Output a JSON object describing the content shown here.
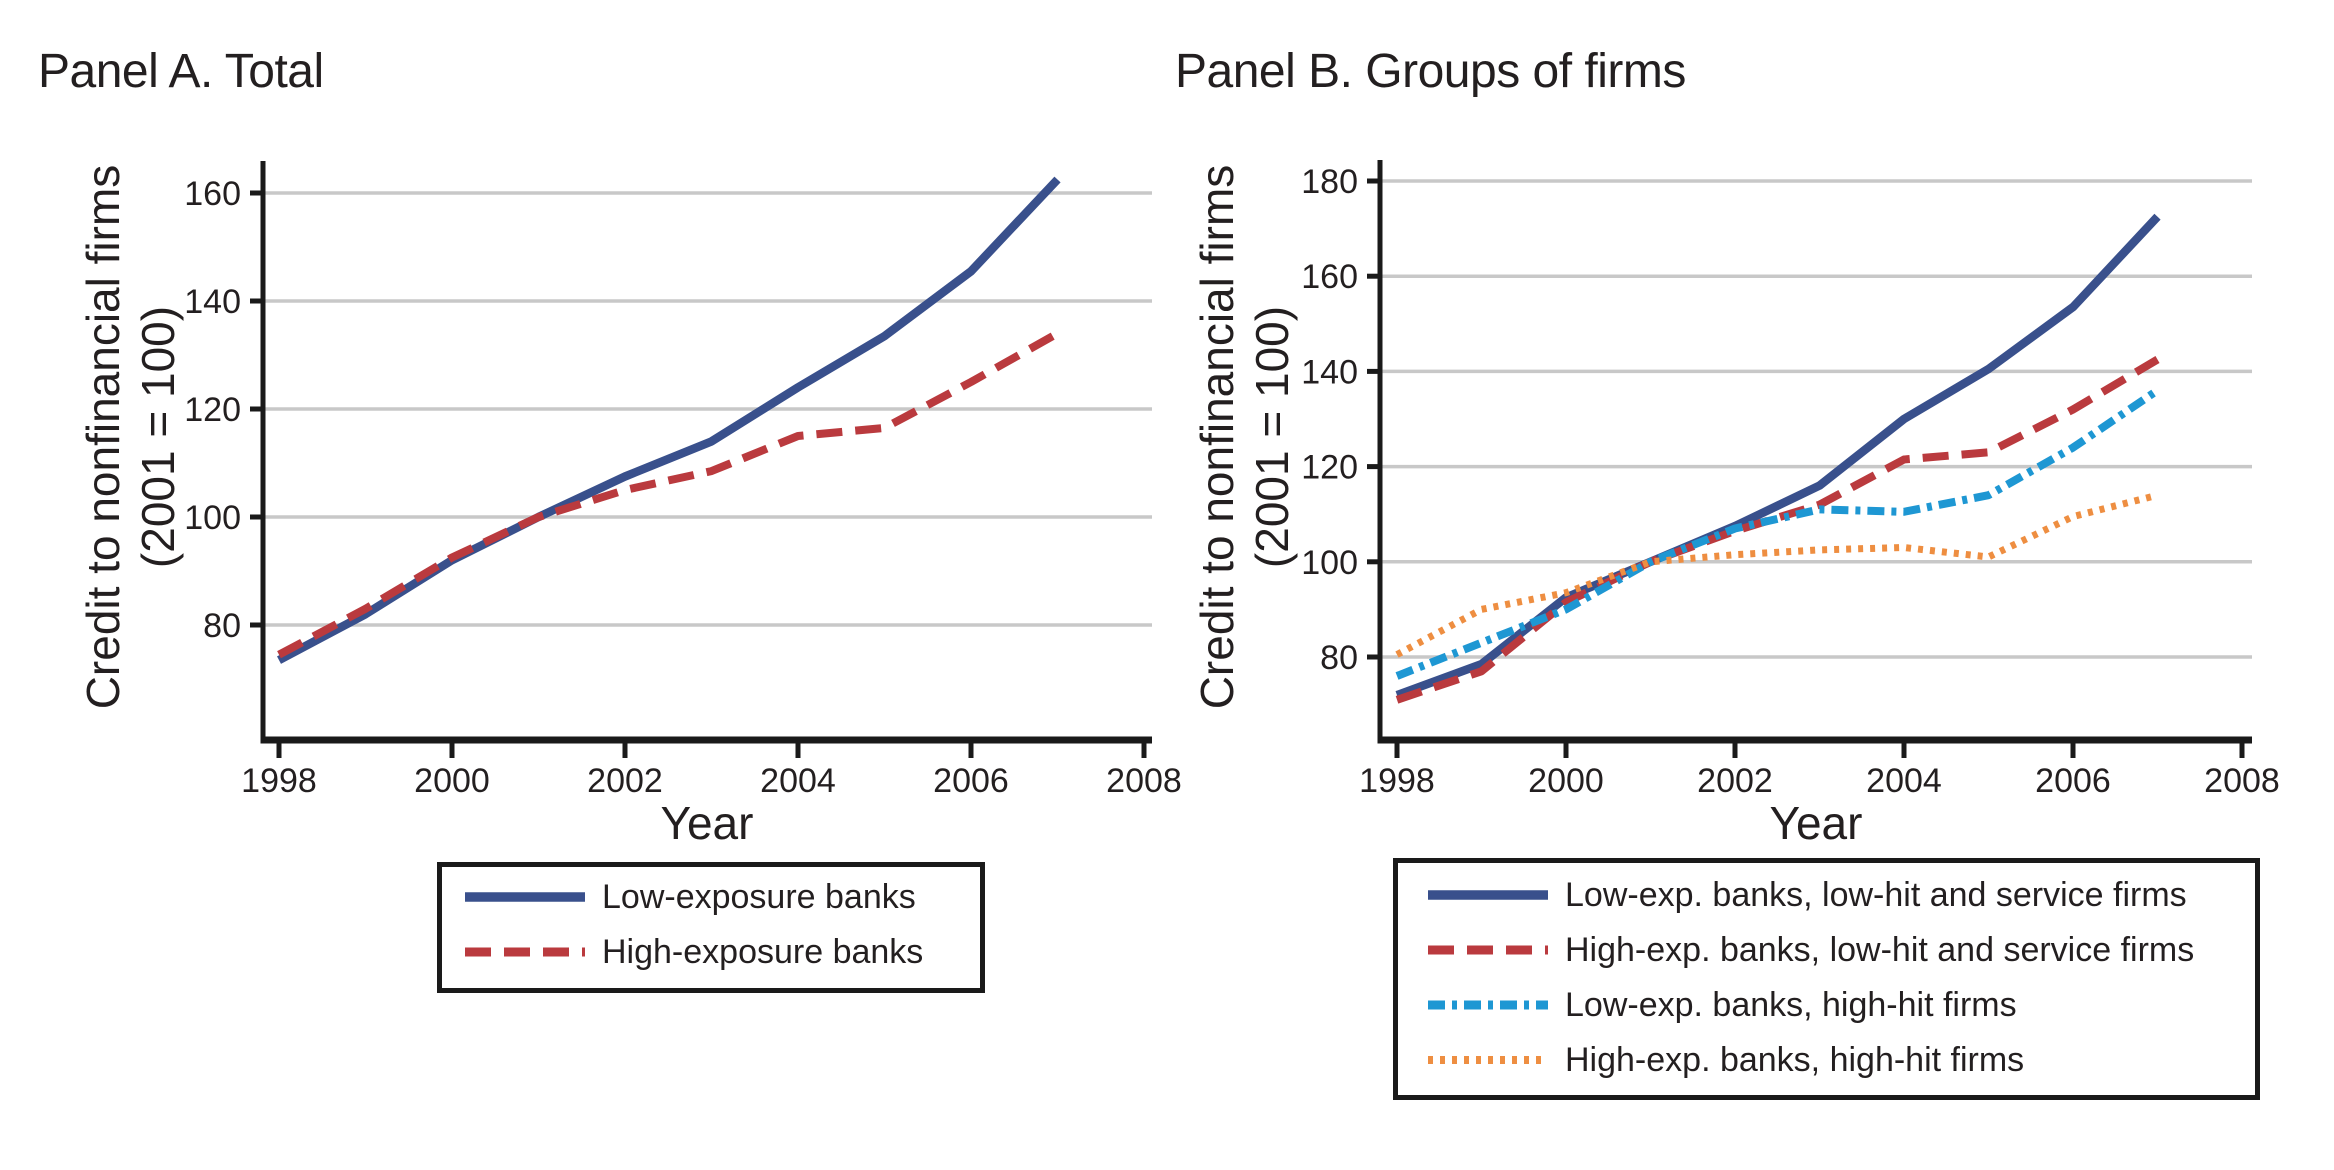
{
  "colors": {
    "background": "#ffffff",
    "grid": "#c8c8c8",
    "axis": "#1a1a1a",
    "text": "#231f20",
    "navy": "#39508c",
    "red": "#ba3a3e",
    "cyan": "#1e97d3",
    "orange": "#ee8e41"
  },
  "chart_data": [
    {
      "type": "line",
      "panel": "A",
      "title": "Panel A. Total",
      "xlabel": "Year",
      "ylabel": "Credit to nonfinancial firms (2001 = 100)",
      "ylabel_lines": [
        "Credit to nonfinancial firms",
        "(2001 = 100)"
      ],
      "x": [
        1998,
        1999,
        2000,
        2001,
        2002,
        2003,
        2004,
        2005,
        2006,
        2007
      ],
      "xticks": [
        1998,
        2000,
        2002,
        2004,
        2006,
        2008
      ],
      "yticks": [
        80,
        100,
        120,
        140,
        160
      ],
      "xlim": [
        1997.8,
        2008.1
      ],
      "ylim": [
        58.5,
        166
      ],
      "grid": "horizontal",
      "legend_position": "below",
      "series": [
        {
          "name": "Low-exposure banks",
          "color": "#39508c",
          "line_style": "solid",
          "values": [
            73.5,
            82,
            92,
            100,
            107.5,
            114,
            124,
            133.5,
            145.5,
            162.5
          ]
        },
        {
          "name": "High-exposure banks",
          "color": "#ba3a3e",
          "line_style": "dashed",
          "values": [
            74.5,
            83,
            92.5,
            100,
            105,
            108.5,
            115,
            116.5,
            125,
            134
          ]
        }
      ]
    },
    {
      "type": "line",
      "panel": "B",
      "title": "Panel B. Groups of firms",
      "xlabel": "Year",
      "ylabel": "Credit to nonfinancial firms (2001 = 100)",
      "ylabel_lines": [
        "Credit to nonfinancial firms",
        "(2001 = 100)"
      ],
      "x": [
        1998,
        1999,
        2000,
        2001,
        2002,
        2003,
        2004,
        2005,
        2006,
        2007
      ],
      "xticks": [
        1998,
        2000,
        2002,
        2004,
        2006,
        2008
      ],
      "yticks": [
        80,
        100,
        120,
        140,
        160,
        180
      ],
      "xlim": [
        1997.8,
        2008.1
      ],
      "ylim": [
        62.5,
        186.5
      ],
      "grid": "horizontal",
      "legend_position": "below",
      "series": [
        {
          "name": "Low-exp. banks, low-hit and service firms",
          "color": "#39508c",
          "line_style": "solid",
          "values": [
            72,
            78.5,
            92.5,
            100,
            107.5,
            116,
            130,
            140.5,
            153.5,
            172.5
          ]
        },
        {
          "name": "High-exp. banks, low-hit and service firms",
          "color": "#ba3a3e",
          "line_style": "dashed",
          "values": [
            71,
            77,
            91.5,
            100,
            106.5,
            112,
            121.5,
            123,
            132,
            142.5
          ]
        },
        {
          "name": "Low-exp. banks, high-hit firms",
          "color": "#1e97d3",
          "line_style": "dashdot",
          "values": [
            76,
            83,
            90,
            100,
            107,
            111,
            110.5,
            114,
            124,
            136
          ]
        },
        {
          "name": "High-exp. banks, high-hit firms",
          "color": "#ee8e41",
          "line_style": "dotted",
          "values": [
            80.5,
            90,
            93.5,
            100,
            101.5,
            102.5,
            103,
            101,
            109.5,
            114
          ]
        }
      ]
    }
  ]
}
